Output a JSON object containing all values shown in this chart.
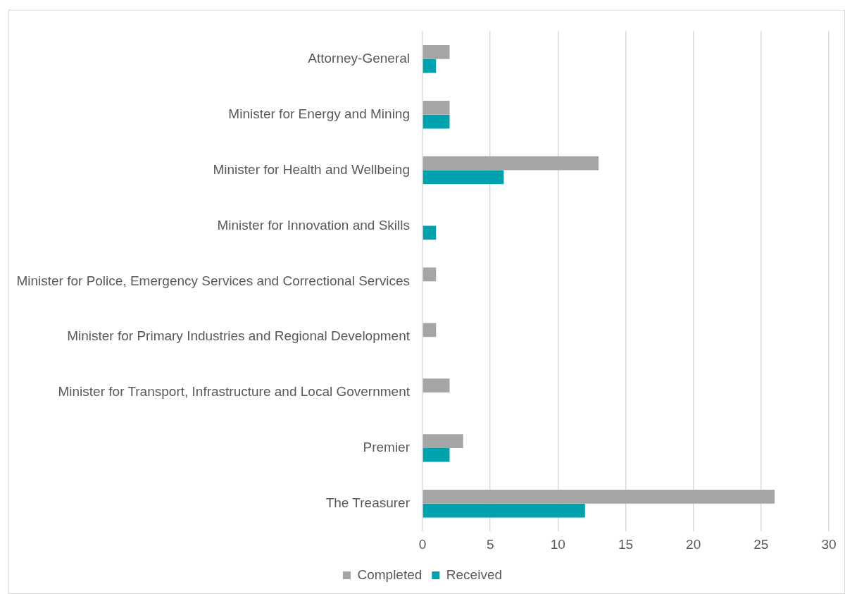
{
  "chart_data": {
    "type": "bar",
    "orientation": "horizontal",
    "categories": [
      "Attorney-General",
      "Minister for Energy and Mining",
      "Minister for Health and Wellbeing",
      "Minister for Innovation and Skills",
      "Minister for Police, Emergency Services and Correctional Services",
      "Minister for Primary Industries and Regional Development",
      "Minister for Transport, Infrastructure and Local Government",
      "Premier",
      "The Treasurer"
    ],
    "series": [
      {
        "name": "Completed",
        "color": "#a5a5a5",
        "values": [
          2,
          2,
          13,
          null,
          1,
          1,
          2,
          3,
          26
        ]
      },
      {
        "name": "Received",
        "color": "#00a3ad",
        "values": [
          1,
          2,
          6,
          1,
          null,
          null,
          null,
          2,
          12
        ]
      }
    ],
    "xlim": [
      0,
      30
    ],
    "xticks": [
      0,
      5,
      10,
      15,
      20,
      25,
      30
    ],
    "grid": "x",
    "legend": "bottom"
  }
}
